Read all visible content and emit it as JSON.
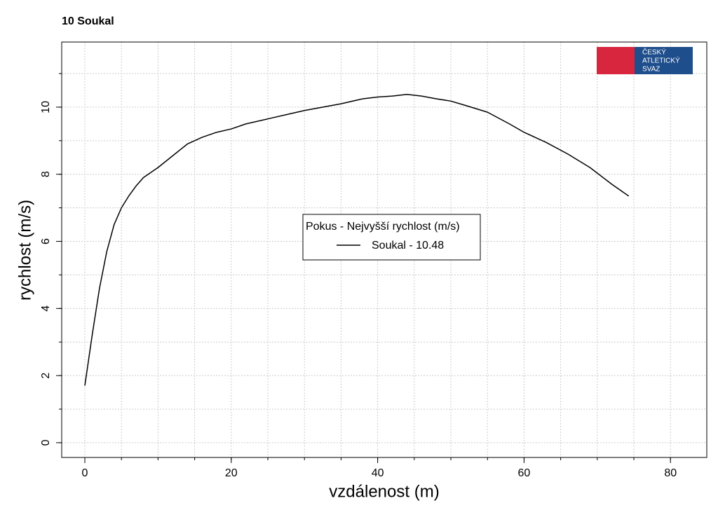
{
  "chart_data": {
    "type": "line",
    "title": "10 Soukal",
    "x_label": "vzdálenost (m)",
    "y_label": "rychlost (m/s)",
    "x": [
      0,
      1,
      2,
      3,
      4,
      5,
      6,
      7,
      8,
      10,
      12,
      14,
      16,
      18,
      20,
      22,
      25,
      28,
      30,
      35,
      38,
      40,
      42,
      44,
      46,
      48,
      50,
      52,
      55,
      58,
      60,
      63,
      66,
      69,
      72,
      74.3
    ],
    "series": [
      {
        "name": "Soukal - 10.48",
        "color": "#000000",
        "values": [
          1.7,
          3.2,
          4.6,
          5.7,
          6.5,
          7.0,
          7.35,
          7.65,
          7.9,
          8.2,
          8.55,
          8.9,
          9.1,
          9.25,
          9.35,
          9.5,
          9.65,
          9.8,
          9.9,
          10.1,
          10.25,
          10.3,
          10.33,
          10.38,
          10.33,
          10.25,
          10.18,
          10.05,
          9.85,
          9.5,
          9.25,
          8.95,
          8.6,
          8.2,
          7.7,
          7.35
        ]
      }
    ],
    "legend_title": "Pokus - Nejvyšší rychlost (m/s)",
    "xlim": [
      -3.16,
      84.96
    ],
    "ylim": [
      -0.44,
      11.94
    ],
    "xticks": [
      0,
      20,
      40,
      60,
      80
    ],
    "yticks": [
      0,
      2,
      4,
      6,
      8,
      10
    ],
    "xminorticks": [
      0,
      5,
      10,
      15,
      20,
      25,
      30,
      35,
      40,
      45,
      50,
      55,
      60,
      65,
      70,
      75,
      80
    ],
    "yminorticks": [
      0,
      1,
      2,
      3,
      4,
      5,
      6,
      7,
      8,
      9,
      10,
      11
    ],
    "grid": true,
    "logo_text": [
      "ČESKÝ",
      "ATLETICKÝ",
      "SVAZ"
    ]
  }
}
